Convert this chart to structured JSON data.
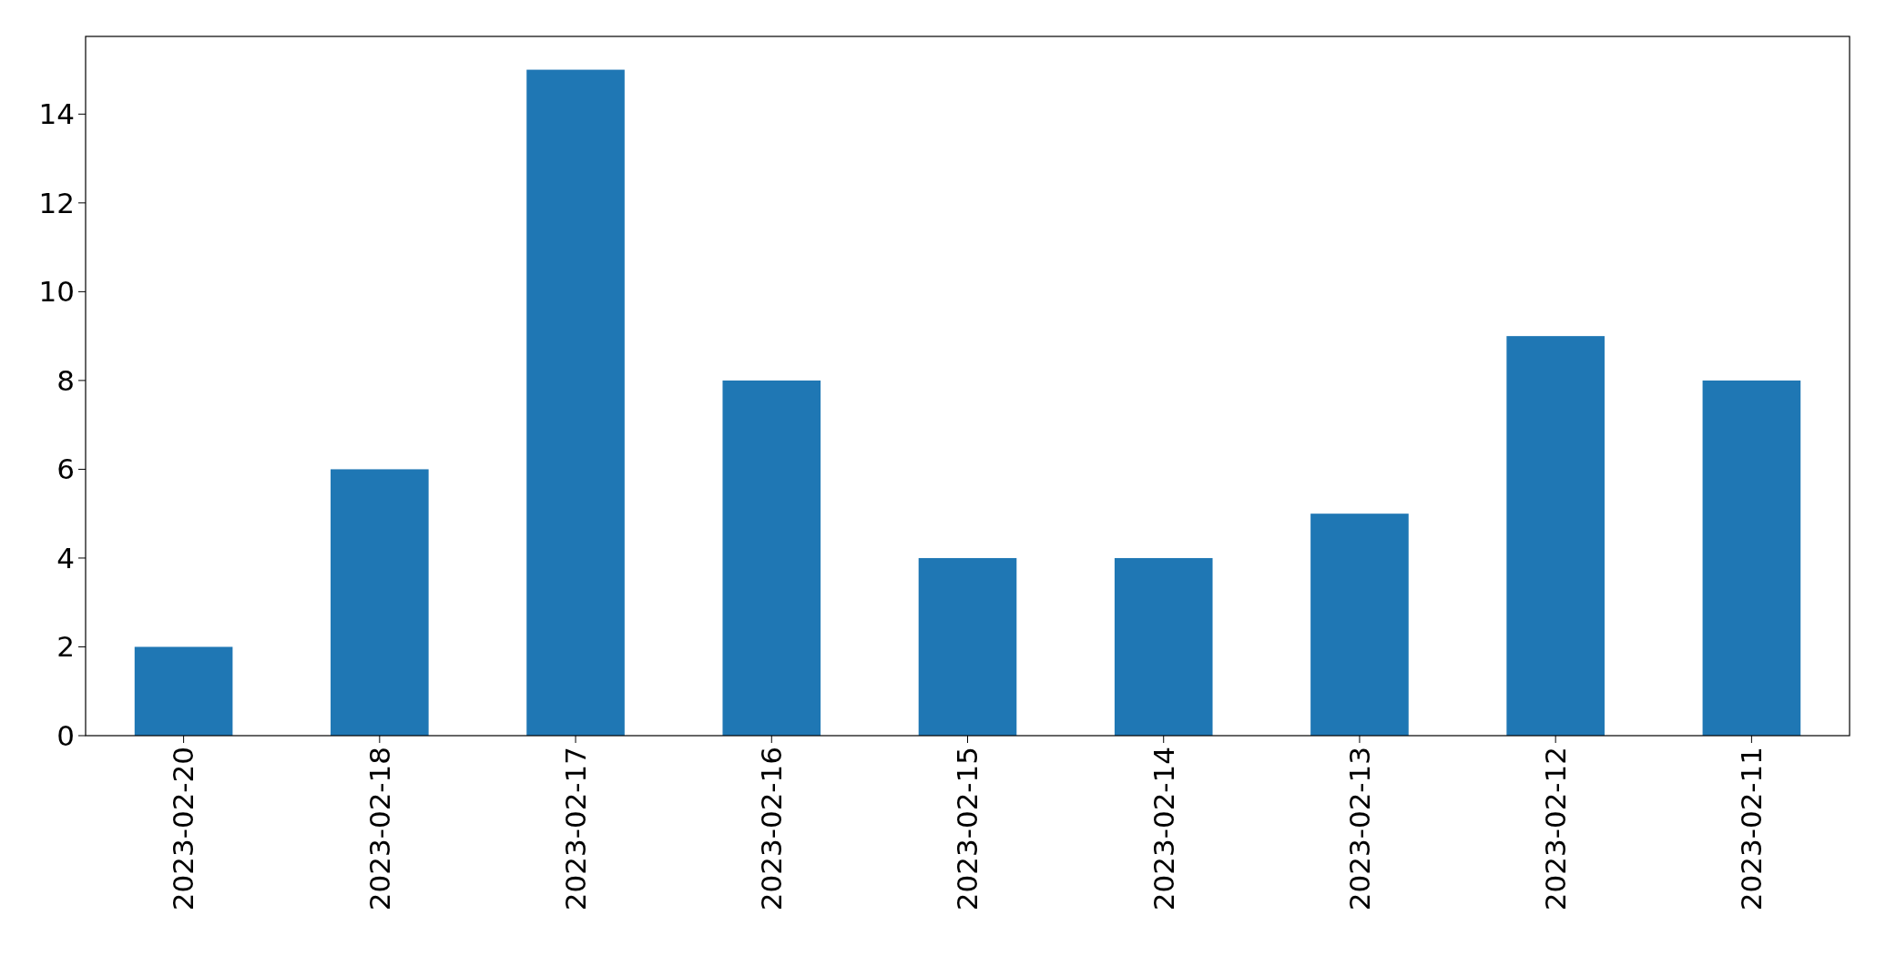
{
  "chart_data": {
    "type": "bar",
    "categories": [
      "2023-02-20",
      "2023-02-18",
      "2023-02-17",
      "2023-02-16",
      "2023-02-15",
      "2023-02-14",
      "2023-02-13",
      "2023-02-12",
      "2023-02-11"
    ],
    "values": [
      2,
      6,
      15,
      8,
      4,
      4,
      5,
      9,
      8
    ],
    "color": "#1f77b4",
    "ylim": [
      0,
      15.75
    ],
    "yticks": [
      0,
      2,
      4,
      6,
      8,
      10,
      12,
      14
    ],
    "grid": false
  }
}
